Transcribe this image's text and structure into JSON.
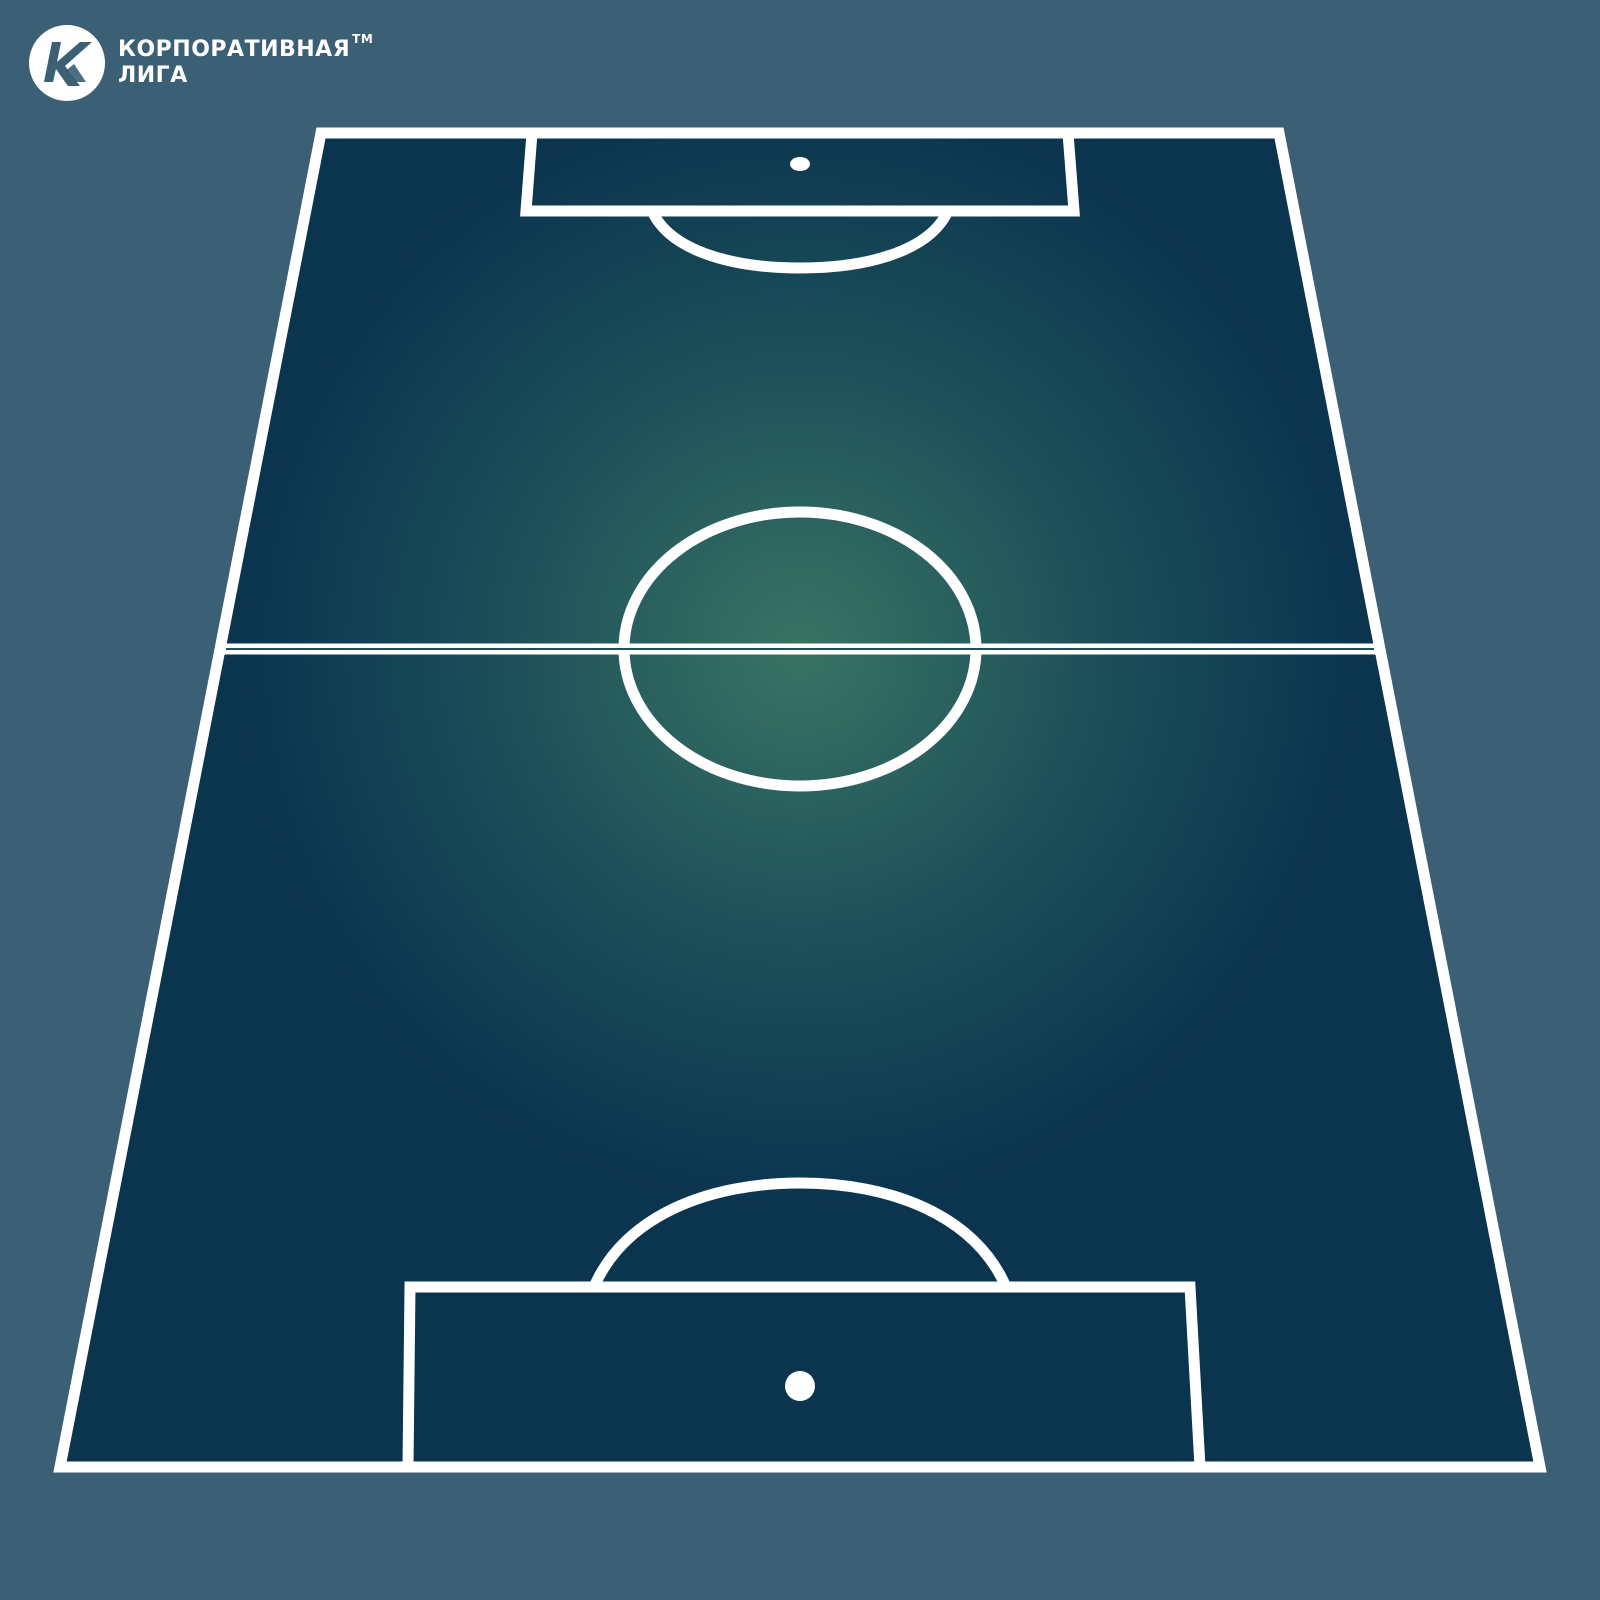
{
  "brand": {
    "name_line1": "КОРПОРАТИВНАЯ",
    "name_line2": "ЛИГА",
    "trademark": "TM",
    "logo_icon": "league-k-logo-icon"
  },
  "colors": {
    "background": "#3b5f74",
    "pitch_dark": "#0b344f",
    "pitch_light": "#3a7363",
    "lines": "#ffffff"
  },
  "pitch": {
    "view": "perspective",
    "markings": [
      "touchline",
      "halfway-line",
      "center-circle",
      "penalty-area-top",
      "penalty-arc-top",
      "penalty-spot-top",
      "penalty-area-bottom",
      "penalty-arc-bottom",
      "penalty-spot-bottom"
    ]
  }
}
